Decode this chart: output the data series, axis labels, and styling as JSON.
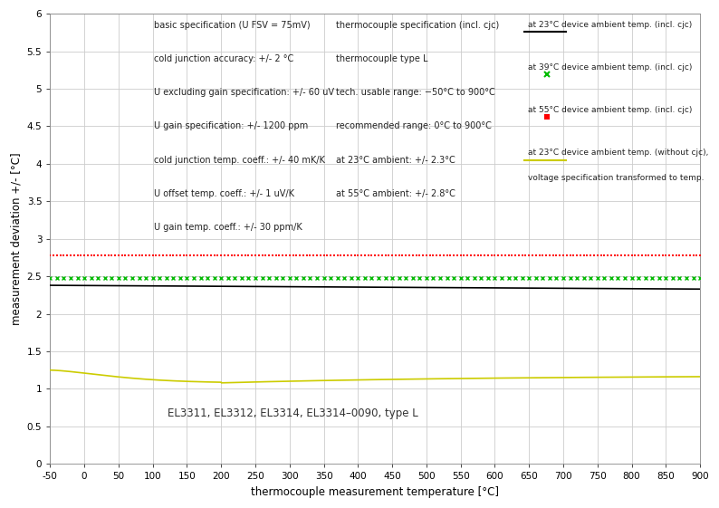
{
  "xlabel": "thermocouple measurement temperature [°C]",
  "ylabel": "measurement deviation +/- [°C]",
  "xlim": [
    -50,
    900
  ],
  "ylim": [
    0,
    6
  ],
  "xticks": [
    -50,
    0,
    50,
    100,
    150,
    200,
    250,
    300,
    350,
    400,
    450,
    500,
    550,
    600,
    650,
    700,
    750,
    800,
    850,
    900
  ],
  "yticks": [
    0,
    0.5,
    1,
    1.5,
    2,
    2.5,
    3,
    3.5,
    4,
    4.5,
    5,
    5.5,
    6
  ],
  "bg_color": "#ffffff",
  "grid_color": "#cccccc",
  "annotation_bottom": "EL3311, EL3312, EL3314, EL3314–0090, type L",
  "text_left_title": "basic specification (U FSV = 75mV)",
  "text_left": [
    "cold junction accuracy: +/- 2 °C",
    "U excluding gain specification: +/- 60 uV",
    "U gain specification: +/- 1200 ppm",
    "cold junction temp. coeff.: +/- 40 mK/K",
    "U offset temp. coeff.: +/- 1 uV/K",
    "U gain temp. coeff.: +/- 30 ppm/K"
  ],
  "text_right_title": "thermocouple specification (incl. cjc)",
  "text_right": [
    "thermocouple type L",
    "tech. usable range: −50°C to 900°C",
    "recommended range: 0°C to 900°C",
    "at 23°C ambient: +/- 2.3°C",
    "at 55°C ambient: +/- 2.8°C"
  ],
  "leg1": "at 23°C device ambient temp. (incl. cjc)",
  "leg2": "at 39°C device ambient temp. (incl. cjc)",
  "leg3": "at 55°C device ambient temp. (incl. cjc)",
  "leg4a": "at 23°C device ambient temp. (without cjc),",
  "leg4b": "voltage specification transformed to temp.",
  "line_23_value": 2.35,
  "line_39_value": 2.475,
  "line_55_value": 2.78,
  "line_colors": [
    "#000000",
    "#00bb00",
    "#ff0000",
    "#cccc00"
  ]
}
